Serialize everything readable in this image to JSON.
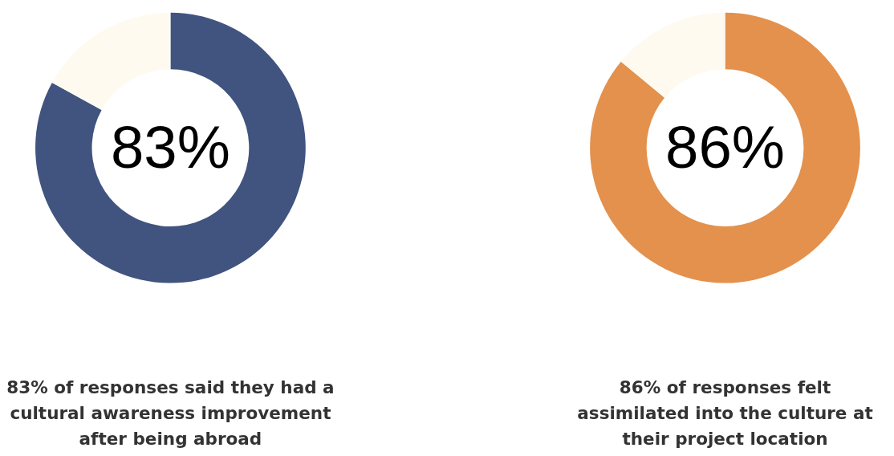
{
  "chart_data": [
    {
      "type": "donut",
      "categories": [
        null,
        null
      ],
      "values": [
        83,
        17
      ],
      "colors": [
        "#41537f",
        "#fffaf0"
      ],
      "value_labels": [
        "83%",
        null
      ],
      "annotations": [
        "83% of responses said they had a",
        "cultural awareness improvement",
        "after being abroad"
      ]
    },
    {
      "type": "donut",
      "categories": [
        null,
        null
      ],
      "values": [
        86,
        14
      ],
      "colors": [
        "#e3914d",
        "#fffaf0"
      ],
      "value_labels": [
        "86%",
        null
      ],
      "annotations": [
        "86% of responses felt",
        "assimilated into the culture at",
        "their project location"
      ]
    }
  ]
}
